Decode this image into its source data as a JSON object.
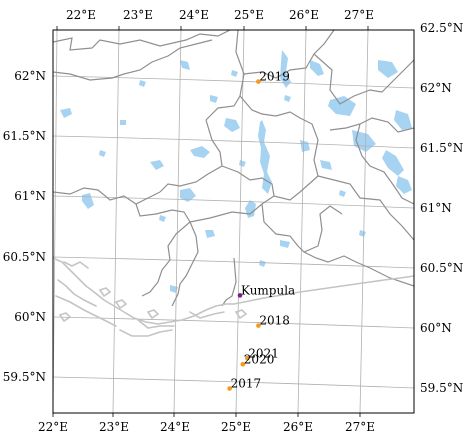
{
  "top_lon_labels": [
    "22°E",
    "23°E",
    "24°E",
    "25°E",
    "26°E",
    "27°E"
  ],
  "bottom_lon_labels": [
    "22°E",
    "23°E",
    "24°E",
    "25°E",
    "26°E",
    "27°E"
  ],
  "left_lat_labels": [
    "62°N",
    "61.5°N",
    "61°N",
    "60.5°N",
    "60°N",
    "59.5°N"
  ],
  "right_lat_labels": [
    "62.5°N",
    "62°N",
    "61.5°N",
    "61°N",
    "60.5°N",
    "60°N",
    "59.5°N"
  ],
  "colors": {
    "lake": "#a7d3f2",
    "border": "#8f8f8f",
    "coast": "#c4c4c4",
    "grid": "#b0b0b0",
    "marker_orange": "#f59a1b",
    "marker_purple": "#7b1b8c"
  },
  "points": [
    {
      "label": "2019",
      "lon": 25.12,
      "lat": 61.97,
      "color": "#f59a1b"
    },
    {
      "label": "Kumpula",
      "lon": 24.96,
      "lat": 60.2,
      "color": "#7b1b8c"
    },
    {
      "label": "2018",
      "lon": 25.28,
      "lat": 59.95,
      "color": "#f59a1b"
    },
    {
      "label": "2021",
      "lon": 25.12,
      "lat": 59.68,
      "color": "#f59a1b"
    },
    {
      "label": "2020",
      "lon": 25.05,
      "lat": 59.63,
      "color": "#f59a1b"
    },
    {
      "label": "2017",
      "lon": 24.85,
      "lat": 59.43,
      "color": "#f59a1b"
    }
  ]
}
